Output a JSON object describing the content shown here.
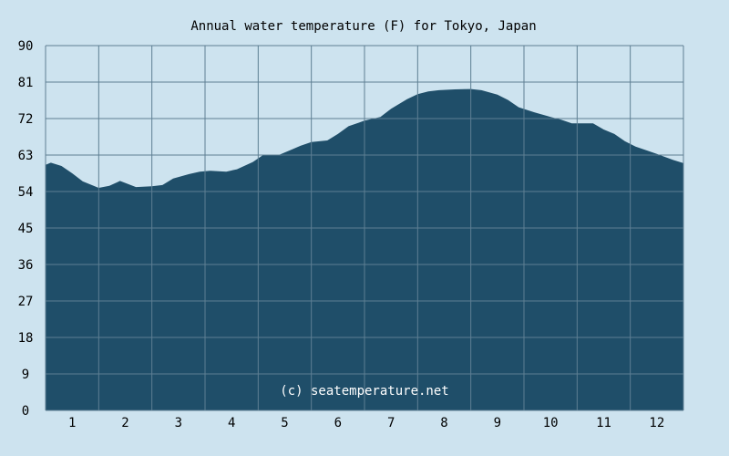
{
  "chart_data": {
    "type": "area",
    "title": "Annual water temperature (F) for Tokyo, Japan",
    "watermark": "(c) seatemperature.net",
    "xlabel": "",
    "ylabel": "",
    "ylim": [
      0,
      90
    ],
    "yticks": [
      "0",
      "9",
      "18",
      "27",
      "36",
      "45",
      "54",
      "63",
      "72",
      "81",
      "90"
    ],
    "xticks": [
      "1",
      "2",
      "3",
      "4",
      "5",
      "6",
      "7",
      "8",
      "9",
      "10",
      "11",
      "12"
    ],
    "grid": true,
    "x": [
      0.5,
      0.6,
      0.8,
      1.0,
      1.2,
      1.5,
      1.7,
      1.9,
      2.2,
      2.5,
      2.7,
      2.9,
      3.2,
      3.4,
      3.6,
      3.9,
      4.1,
      4.4,
      4.6,
      4.9,
      5.1,
      5.3,
      5.5,
      5.8,
      6.0,
      6.2,
      6.4,
      6.5,
      6.8,
      7.0,
      7.3,
      7.5,
      7.7,
      7.9,
      8.2,
      8.5,
      8.7,
      9.0,
      9.2,
      9.4,
      9.7,
      10.0,
      10.2,
      10.4,
      10.6,
      10.8,
      11.0,
      11.2,
      11.4,
      11.6,
      11.8,
      12.0,
      12.3,
      12.5
    ],
    "values": [
      60.6,
      61.1,
      60.3,
      58.5,
      56.5,
      54.9,
      55.4,
      56.6,
      55.1,
      55.3,
      55.6,
      57.2,
      58.3,
      58.9,
      59.1,
      58.9,
      59.5,
      61.3,
      63.1,
      63.1,
      64.2,
      65.3,
      66.2,
      66.6,
      68.2,
      70.1,
      71.0,
      71.5,
      72.4,
      74.4,
      76.8,
      78.0,
      78.7,
      79.0,
      79.2,
      79.3,
      79.0,
      77.9,
      76.6,
      74.8,
      73.5,
      72.4,
      71.7,
      70.8,
      70.8,
      70.8,
      69.3,
      68.2,
      66.4,
      65.1,
      64.2,
      63.3,
      61.8,
      61.0
    ],
    "colors": {
      "background": "#cde3ef",
      "fill": "#1f4e69",
      "grid": "#5e7f93",
      "text": "#000000",
      "watermark": "#ffffff"
    }
  }
}
